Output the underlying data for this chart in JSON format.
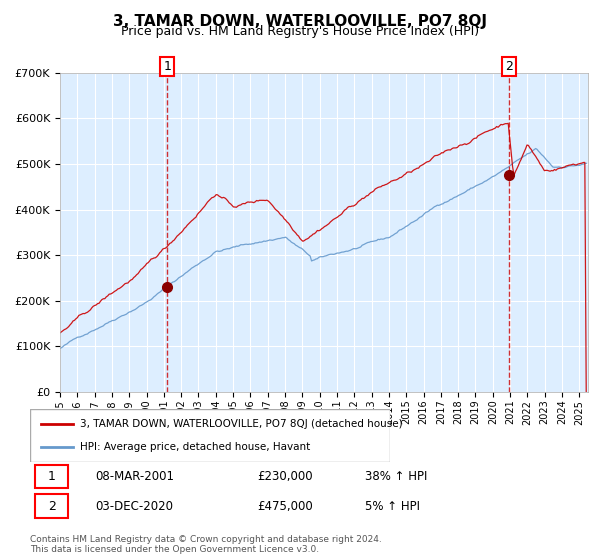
{
  "title": "3, TAMAR DOWN, WATERLOOVILLE, PO7 8QJ",
  "subtitle": "Price paid vs. HM Land Registry's House Price Index (HPI)",
  "legend_line1": "3, TAMAR DOWN, WATERLOOVILLE, PO7 8QJ (detached house)",
  "legend_line2": "HPI: Average price, detached house, Havant",
  "annotation1_label": "1",
  "annotation1_date": "08-MAR-2001",
  "annotation1_price": "£230,000",
  "annotation1_hpi": "38% ↑ HPI",
  "annotation1_year": 2001.19,
  "annotation1_value": 230000,
  "annotation2_label": "2",
  "annotation2_date": "03-DEC-2020",
  "annotation2_price": "£475,000",
  "annotation2_hpi": "5% ↑ HPI",
  "annotation2_year": 2020.92,
  "annotation2_value": 475000,
  "red_line_color": "#cc0000",
  "blue_line_color": "#6699cc",
  "background_color": "#ddeeff",
  "plot_bg_color": "#ddeeff",
  "grid_color": "#ffffff",
  "footer_text": "Contains HM Land Registry data © Crown copyright and database right 2024.\nThis data is licensed under the Open Government Licence v3.0.",
  "ylim": [
    0,
    700000
  ],
  "xlim_start": 1995.0,
  "xlim_end": 2025.5
}
